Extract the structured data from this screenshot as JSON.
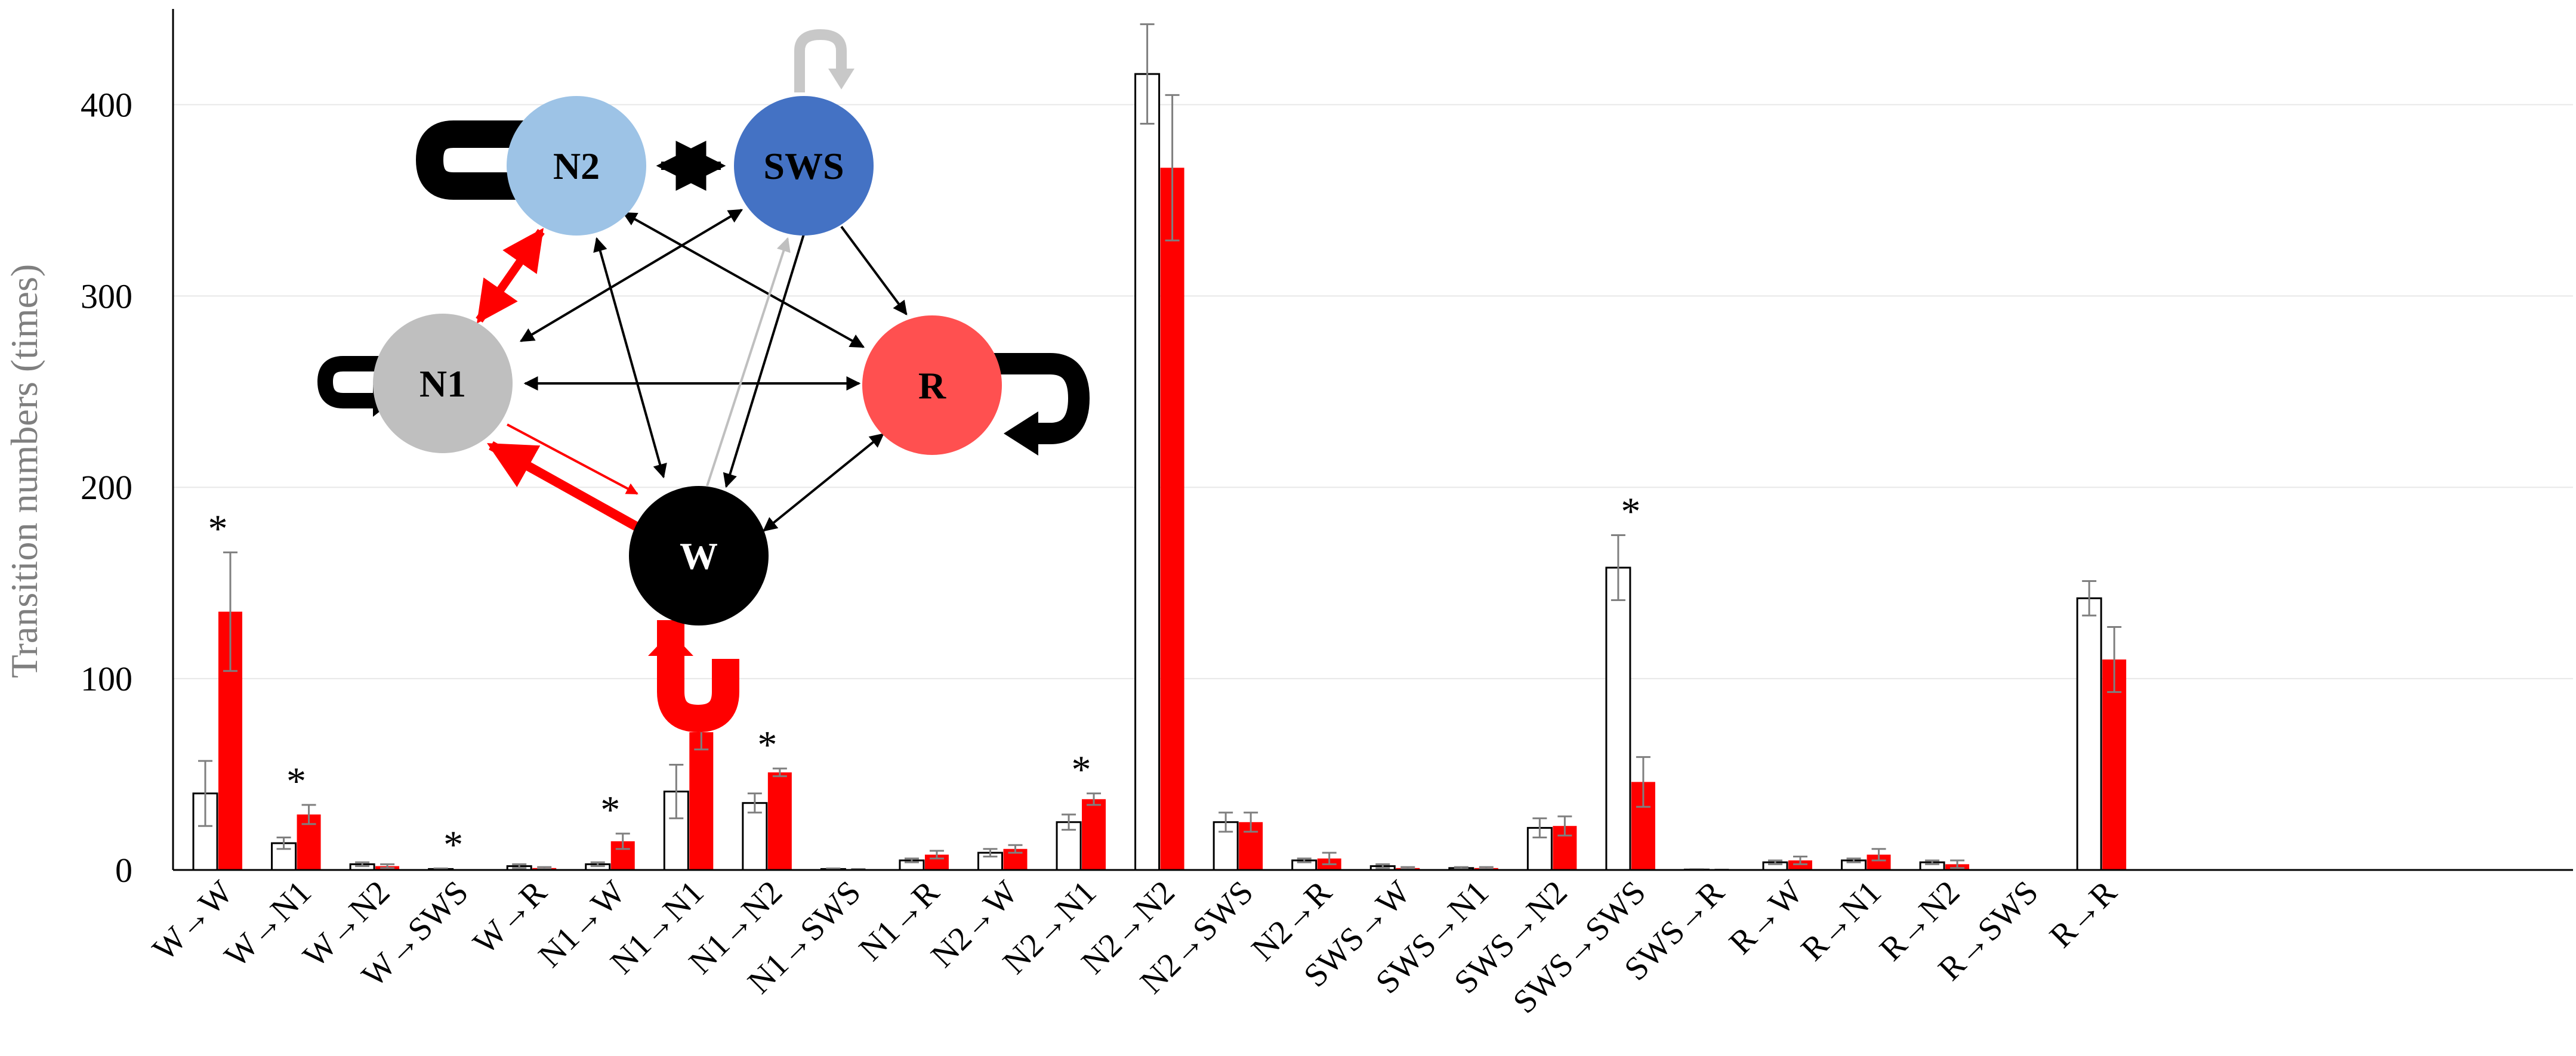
{
  "chart_data": {
    "type": "bar",
    "ylabel": "Transition numbers (times)",
    "xlabel": "",
    "ylim": [
      0,
      450
    ],
    "yticks": [
      0,
      100,
      200,
      300,
      400
    ],
    "grid": true,
    "colors": {
      "group1": "#ffffff",
      "group2": "#ff0000",
      "outline": "#000000",
      "error": "#7f7f7f"
    },
    "categories": [
      "W→W",
      "W→N1",
      "W→N2",
      "W→SWS",
      "W→R",
      "N1→W",
      "N1→N1",
      "N1→N2",
      "N1→SWS",
      "N1→R",
      "N2→W",
      "N2→N1",
      "N2→N2",
      "N2→SWS",
      "N2→R",
      "SWS→W",
      "SWS→N1",
      "SWS→N2",
      "SWS→SWS",
      "SWS→R",
      "R→W",
      "R→N1",
      "R→N2",
      "R→SWS",
      "R→R"
    ],
    "series": [
      {
        "color": "#ffffff",
        "values": [
          40,
          14,
          3,
          0.5,
          2,
          3,
          41,
          35,
          0.5,
          5,
          9,
          25,
          416,
          25,
          5,
          2,
          1,
          22,
          158,
          0.2,
          4,
          5,
          4,
          0,
          142
        ],
        "errors": [
          17,
          3,
          1,
          0.3,
          1,
          1,
          14,
          5,
          0.3,
          1,
          2,
          4,
          26,
          5,
          1,
          1,
          0.5,
          5,
          17,
          0.2,
          1,
          1,
          1,
          0,
          9
        ]
      },
      {
        "color": "#ff0000",
        "values": [
          135,
          29,
          2,
          0,
          1,
          15,
          72,
          51,
          0.3,
          8,
          11,
          37,
          367,
          25,
          6,
          1,
          1,
          23,
          46,
          0.1,
          5,
          8,
          3,
          0,
          110
        ],
        "errors": [
          31,
          5,
          1,
          0,
          0.5,
          4,
          9,
          2,
          0.2,
          2,
          2,
          3,
          38,
          5,
          3,
          0.5,
          0.5,
          5,
          13,
          0.1,
          2,
          3,
          2,
          0,
          17
        ]
      }
    ],
    "significance_marker": "*",
    "significant_indices": [
      0,
      1,
      3,
      5,
      7,
      11,
      18
    ]
  },
  "diagram": {
    "nodes": [
      {
        "id": "N2",
        "label": "N2",
        "color": "#9dc3e6",
        "text_color": "#000000"
      },
      {
        "id": "SWS",
        "label": "SWS",
        "color": "#4472c4",
        "text_color": "#000000"
      },
      {
        "id": "N1",
        "label": "N1",
        "color": "#bfbfbf",
        "text_color": "#000000"
      },
      {
        "id": "R",
        "label": "R",
        "color": "#ff5050",
        "text_color": "#000000"
      },
      {
        "id": "W",
        "label": "W",
        "color": "#000000",
        "text_color": "#ffffff"
      }
    ]
  }
}
